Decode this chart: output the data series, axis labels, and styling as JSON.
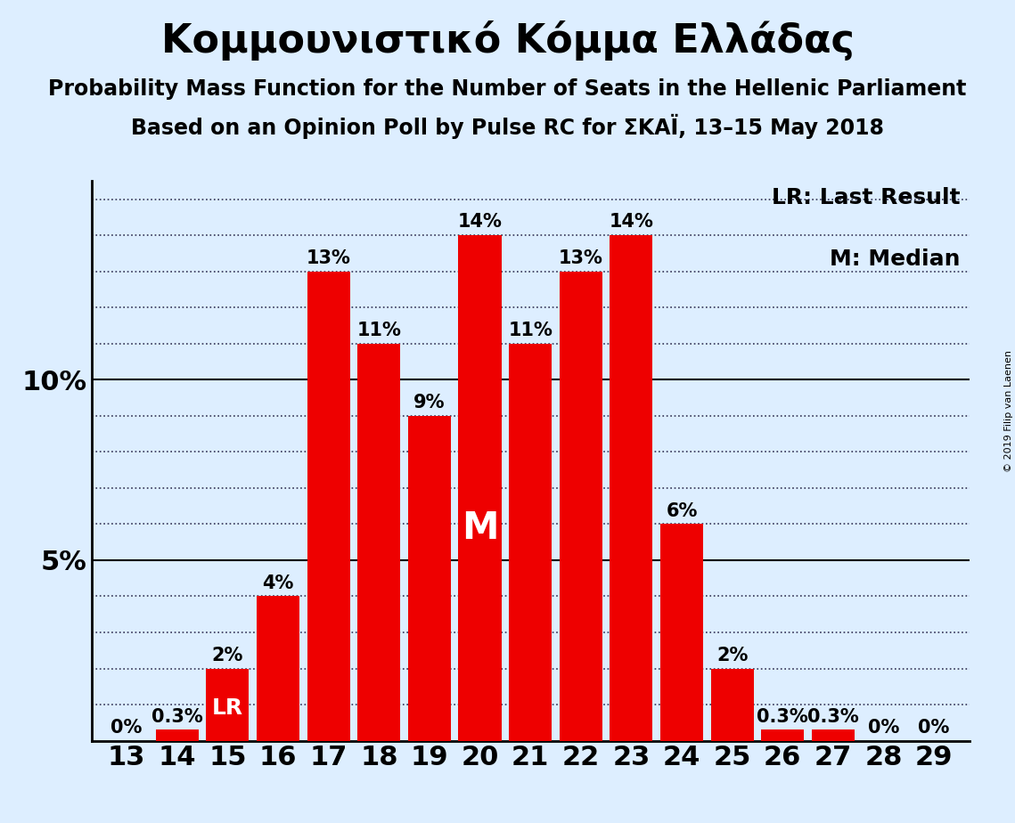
{
  "title": "Κομμουνιστικό Κόμμα Ελλάδας",
  "subtitle1": "Probability Mass Function for the Number of Seats in the Hellenic Parliament",
  "subtitle2": "Based on an Opinion Poll by Pulse RC for ΣΚΑΪ, 13–15 May 2018",
  "copyright": "© 2019 Filip van Laenen",
  "seats": [
    13,
    14,
    15,
    16,
    17,
    18,
    19,
    20,
    21,
    22,
    23,
    24,
    25,
    26,
    27,
    28,
    29
  ],
  "values": [
    0.0,
    0.3,
    2.0,
    4.0,
    13.0,
    11.0,
    9.0,
    14.0,
    11.0,
    13.0,
    14.0,
    6.0,
    2.0,
    0.3,
    0.3,
    0.0,
    0.0
  ],
  "labels": [
    "0%",
    "0.3%",
    "2%",
    "4%",
    "13%",
    "11%",
    "9%",
    "14%",
    "11%",
    "13%",
    "14%",
    "6%",
    "2%",
    "0.3%",
    "0.3%",
    "0%",
    "0%"
  ],
  "bar_color": "#ee0000",
  "background_color": "#ddeeff",
  "lr_seat": 15,
  "median_seat": 20,
  "legend_lr": "LR: Last Result",
  "legend_m": "M: Median",
  "ylim": [
    0,
    15.5
  ],
  "title_fontsize": 32,
  "subtitle_fontsize": 17,
  "axis_fontsize": 22,
  "label_fontsize": 15,
  "legend_fontsize": 18,
  "lr_label_fontsize": 18,
  "m_label_fontsize": 30
}
